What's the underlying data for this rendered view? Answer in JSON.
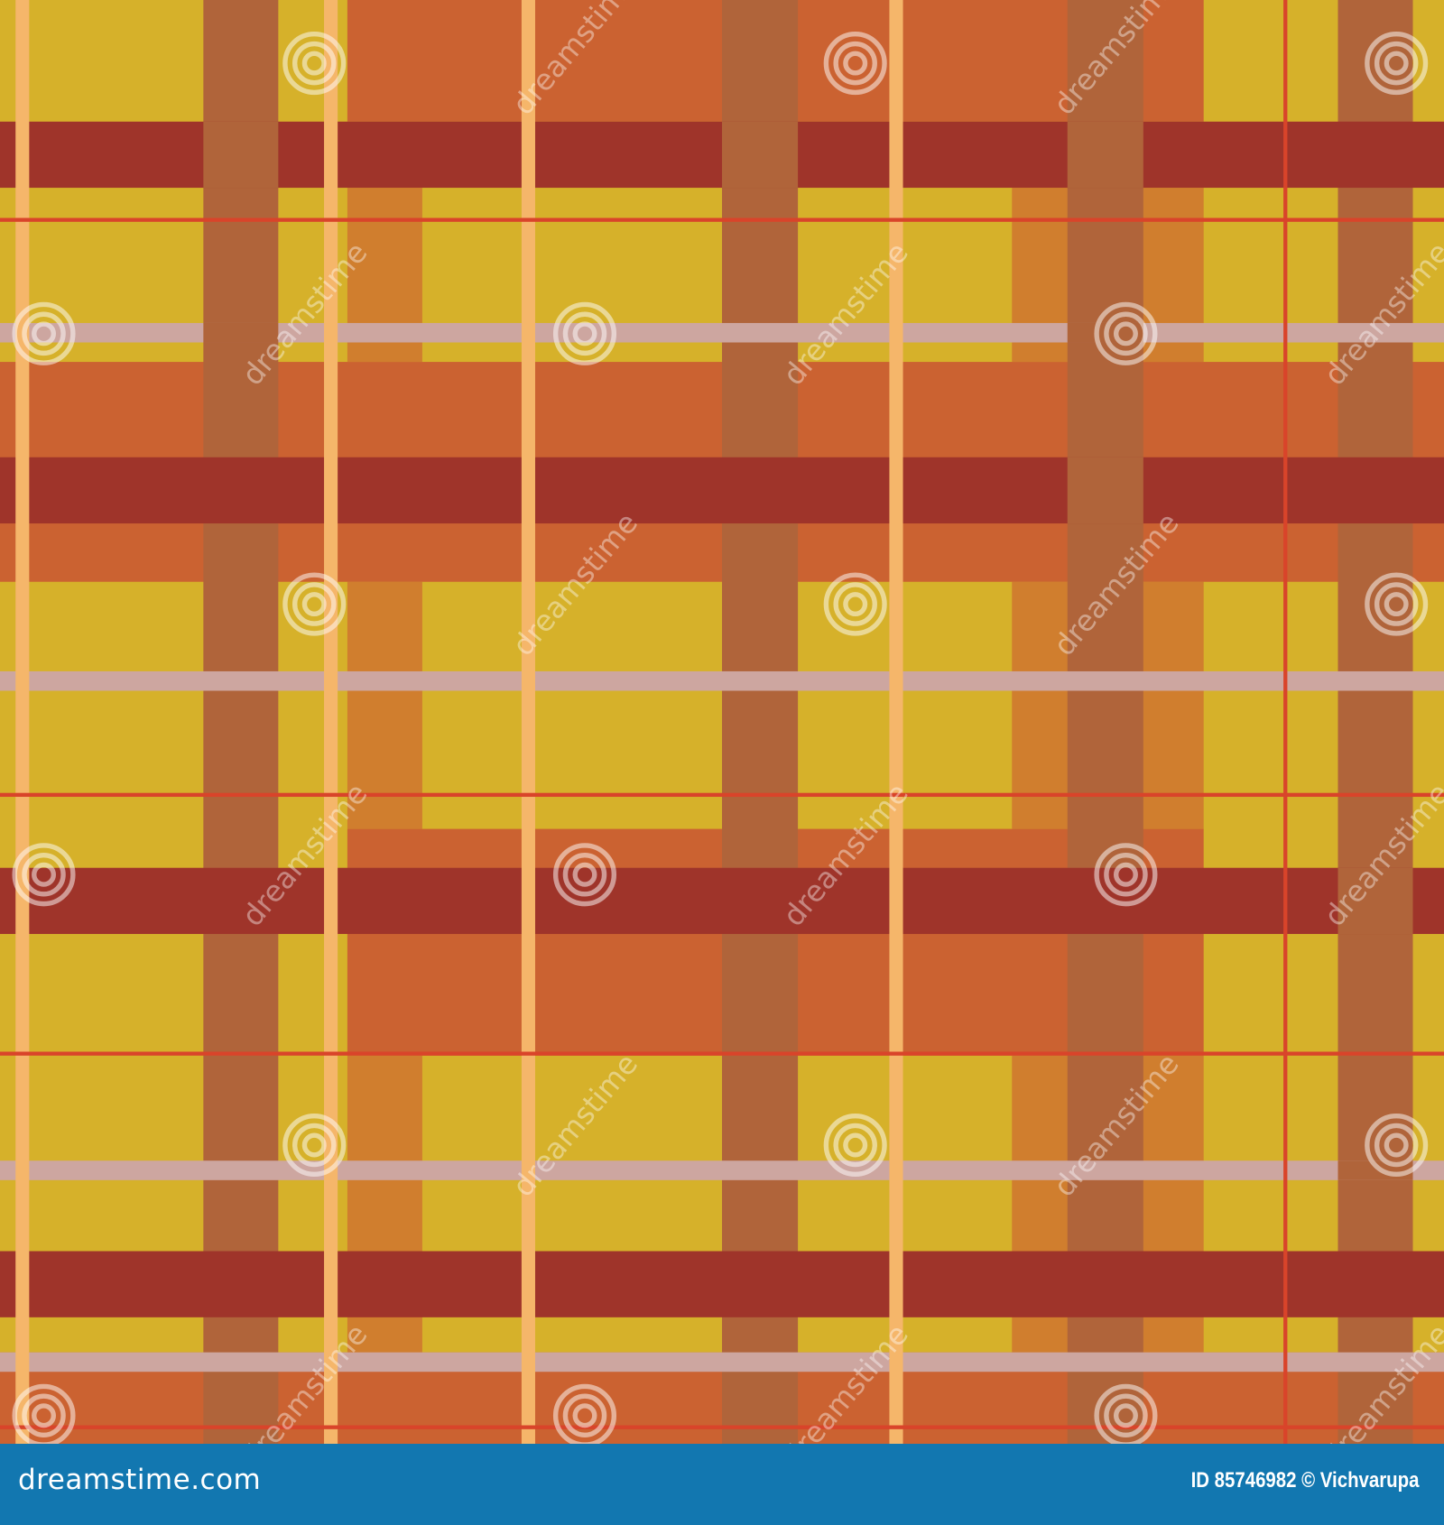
{
  "image": {
    "description_type": "plaid-pattern",
    "colors": {
      "yellow": "#D6B12A",
      "orange": "#CB6231",
      "medium_orange": "#D07E2E",
      "brown": "#B0643A",
      "dark_red": "#9F342A",
      "pink_gray": "#CDA6A0",
      "peach": "#F5B66A",
      "thin_red": "#D9442A"
    },
    "watermark": {
      "text": "dreamstime",
      "icon": "spiral-icon"
    }
  },
  "footer": {
    "logo": "dreamstime.com",
    "credit": "ID 85746982 © Vichvarupa",
    "background": "#1277B0"
  }
}
